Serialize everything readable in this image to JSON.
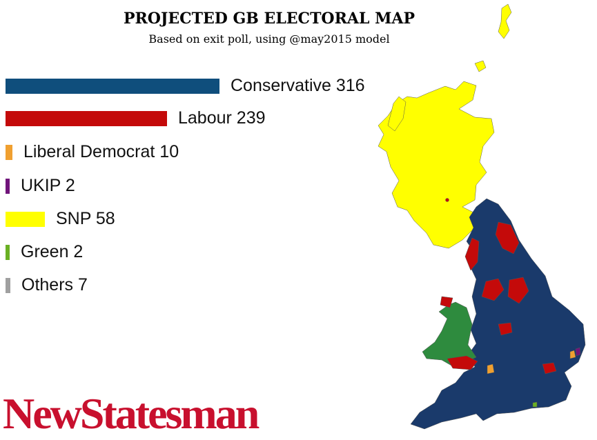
{
  "header": {
    "title": "PROJECTED GB ELECTORAL MAP",
    "subtitle": "Based on exit poll, using @may2015 model"
  },
  "legend": {
    "items": [
      {
        "party": "Conservative",
        "seats": 316,
        "label": "Conservative 316",
        "color": "#0f4e7c"
      },
      {
        "party": "Labour",
        "seats": 239,
        "label": "Labour 239",
        "color": "#c40a0a"
      },
      {
        "party": "Liberal Democrat",
        "seats": 10,
        "label": "Liberal Democrat 10",
        "color": "#f0a030"
      },
      {
        "party": "UKIP",
        "seats": 2,
        "label": "UKIP 2",
        "color": "#70147a"
      },
      {
        "party": "SNP",
        "seats": 58,
        "label": "SNP 58",
        "color": "#ffff00"
      },
      {
        "party": "Green",
        "seats": 2,
        "label": "Green 2",
        "color": "#6ab023"
      },
      {
        "party": "Others",
        "seats": 7,
        "label": "Others 7",
        "color": "#a0a0a0"
      }
    ]
  },
  "map": {
    "colors": {
      "scotland": "#ffff00",
      "england": "#1a3a6b",
      "labour": "#c40a0a",
      "wales_green": "#2e8b3e"
    }
  },
  "brand": {
    "logo_text": "NewStatesman"
  }
}
